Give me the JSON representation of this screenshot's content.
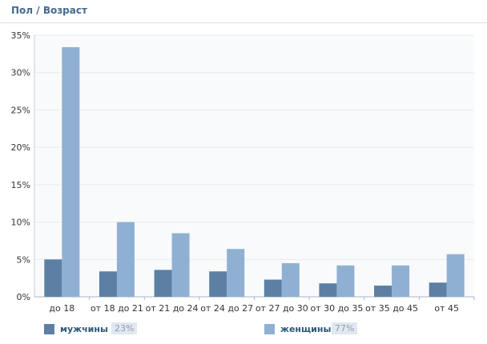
{
  "header": {
    "title": "Пол / Возраст"
  },
  "legend": {
    "men": {
      "label": "мужчины",
      "percent": "23%"
    },
    "women": {
      "label": "женщины",
      "percent": "77%"
    }
  },
  "colors": {
    "men": "#5d7fa3",
    "women": "#8fb0d2",
    "grid": "#e6ebf0",
    "plot_bg": "#f9fafb",
    "axis_text": "#333333"
  },
  "chart_data": {
    "type": "bar",
    "title": "Пол / Возраст",
    "categories": [
      "до 18",
      "от 18 до 21",
      "от 21 до 24",
      "от 24 до 27",
      "от 27 до 30",
      "от 30 до 35",
      "от 35 до 45",
      "от 45"
    ],
    "series": [
      {
        "name": "мужчины",
        "values": [
          5.0,
          3.4,
          3.6,
          3.4,
          2.3,
          1.8,
          1.5,
          1.9
        ]
      },
      {
        "name": "женщины",
        "values": [
          33.4,
          10.0,
          8.5,
          6.4,
          4.5,
          4.2,
          4.2,
          5.7
        ]
      }
    ],
    "ylim": [
      0,
      35
    ],
    "yticks": [
      "0%",
      "5%",
      "10%",
      "15%",
      "20%",
      "25%",
      "30%",
      "35%"
    ],
    "ytick_values": [
      0,
      5,
      10,
      15,
      20,
      25,
      30,
      35
    ],
    "grid": true,
    "legend_position": "bottom"
  }
}
